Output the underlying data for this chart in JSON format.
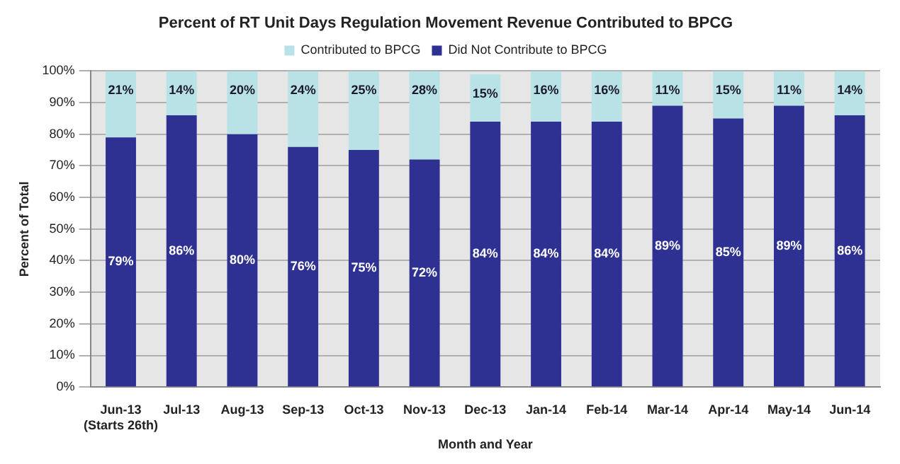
{
  "chart_data": {
    "type": "bar",
    "title": "Percent of RT Unit Days Regulation Movement Revenue Contributed to BPCG",
    "xlabel": "Month and Year",
    "ylabel": "Percent of Total",
    "categories": [
      "Jun-13\n(Starts 26th)",
      "Jul-13",
      "Aug-13",
      "Sep-13",
      "Oct-13",
      "Nov-13",
      "Dec-13",
      "Jan-14",
      "Feb-14",
      "Mar-14",
      "Apr-14",
      "May-14",
      "Jun-14"
    ],
    "series": [
      {
        "name": "Did Not Contribute to BPCG",
        "color": "#2e3192",
        "values": [
          79,
          86,
          80,
          76,
          75,
          72,
          84,
          84,
          84,
          89,
          85,
          89,
          86
        ],
        "value_labels": [
          "79%",
          "86%",
          "80%",
          "76%",
          "75%",
          "72%",
          "84%",
          "84%",
          "84%",
          "89%",
          "85%",
          "89%",
          "86%"
        ]
      },
      {
        "name": "Contributed to BPCG",
        "color": "#b9e2e6",
        "values": [
          21,
          14,
          20,
          24,
          25,
          28,
          15,
          16,
          16,
          11,
          15,
          11,
          14
        ],
        "value_labels": [
          "21%",
          "14%",
          "20%",
          "24%",
          "25%",
          "28%",
          "15%",
          "16%",
          "16%",
          "11%",
          "15%",
          "11%",
          "14%"
        ]
      }
    ],
    "stacked": true,
    "legend": "top",
    "grid": "y",
    "ylim": [
      0,
      100
    ],
    "yticks": [
      {
        "value": 0,
        "label": "0%"
      },
      {
        "value": 10,
        "label": "10%"
      },
      {
        "value": 20,
        "label": "20%"
      },
      {
        "value": 30,
        "label": "30%"
      },
      {
        "value": 40,
        "label": "40%"
      },
      {
        "value": 50,
        "label": "50%"
      },
      {
        "value": 60,
        "label": "60%"
      },
      {
        "value": 70,
        "label": "70%"
      },
      {
        "value": 80,
        "label": "80%"
      },
      {
        "value": 90,
        "label": "90%"
      },
      {
        "value": 100,
        "label": "100%"
      }
    ]
  }
}
